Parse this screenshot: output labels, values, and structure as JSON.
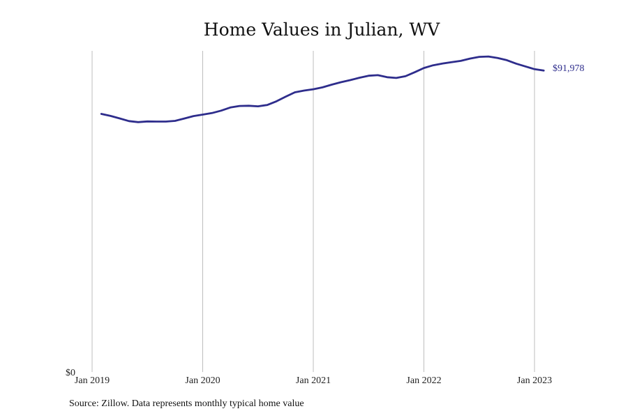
{
  "source_text": "Source: Zillow. Data represents monthly typical home value",
  "colors": {
    "line": "#2e2d8c",
    "grid": "#bdbdbd",
    "text": "#111111"
  },
  "chart_data": {
    "type": "line",
    "title": "Home Values in Julian, WV",
    "xlabel": "",
    "ylabel": "",
    "y_tick_labels": [
      "$0"
    ],
    "x_tick_labels": [
      "Jan 2019",
      "Jan 2020",
      "Jan 2021",
      "Jan 2022",
      "Jan 2023"
    ],
    "x_tick_dates": [
      "2019-01",
      "2020-01",
      "2021-01",
      "2022-01",
      "2023-01"
    ],
    "end_label": "$91,978",
    "grid": "vertical lines at each January",
    "ylim": [
      0,
      98000
    ],
    "series": [
      {
        "x": [
          "2019-02",
          "2019-03",
          "2019-04",
          "2019-05",
          "2019-06",
          "2019-07",
          "2019-08",
          "2019-09",
          "2019-10",
          "2019-11",
          "2019-12",
          "2020-01",
          "2020-02",
          "2020-03",
          "2020-04",
          "2020-05",
          "2020-06",
          "2020-07",
          "2020-08",
          "2020-09",
          "2020-10",
          "2020-11",
          "2020-12",
          "2021-01",
          "2021-02",
          "2021-03",
          "2021-04",
          "2021-05",
          "2021-06",
          "2021-07",
          "2021-08",
          "2021-09",
          "2021-10",
          "2021-11",
          "2021-12",
          "2022-01",
          "2022-02",
          "2022-03",
          "2022-04",
          "2022-05",
          "2022-06",
          "2022-07",
          "2022-08",
          "2022-09",
          "2022-10",
          "2022-11",
          "2022-12",
          "2023-01",
          "2023-02"
        ],
        "values": [
          78760,
          78150,
          77380,
          76580,
          76250,
          76460,
          76420,
          76420,
          76630,
          77360,
          78100,
          78540,
          79010,
          79760,
          80720,
          81180,
          81250,
          81070,
          81490,
          82600,
          84010,
          85350,
          85880,
          86290,
          86860,
          87690,
          88430,
          89080,
          89800,
          90420,
          90590,
          89960,
          89720,
          90260,
          91480,
          92760,
          93590,
          94130,
          94530,
          94940,
          95650,
          96180,
          96280,
          95810,
          95160,
          94120,
          93250,
          92400,
          91978
        ]
      }
    ]
  }
}
